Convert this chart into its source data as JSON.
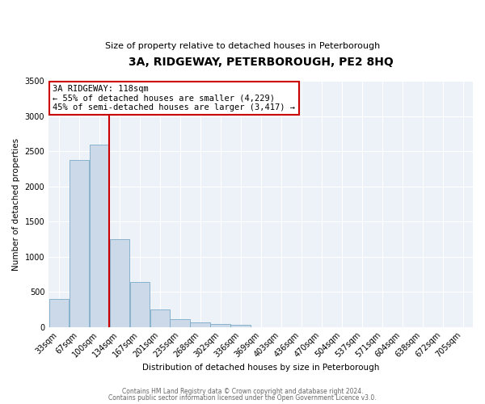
{
  "title": "3A, RIDGEWAY, PETERBOROUGH, PE2 8HQ",
  "subtitle": "Size of property relative to detached houses in Peterborough",
  "xlabel": "Distribution of detached houses by size in Peterborough",
  "ylabel": "Number of detached properties",
  "bar_color": "#ccd9e8",
  "bar_edge_color": "#7aaac8",
  "background_color": "#edf2f9",
  "grid_color": "#ffffff",
  "categories": [
    "33sqm",
    "67sqm",
    "100sqm",
    "134sqm",
    "167sqm",
    "201sqm",
    "235sqm",
    "268sqm",
    "302sqm",
    "336sqm",
    "369sqm",
    "403sqm",
    "436sqm",
    "470sqm",
    "504sqm",
    "537sqm",
    "571sqm",
    "604sqm",
    "638sqm",
    "672sqm",
    "705sqm"
  ],
  "values": [
    400,
    2380,
    2600,
    1250,
    640,
    255,
    110,
    60,
    40,
    30,
    0,
    0,
    0,
    0,
    0,
    0,
    0,
    0,
    0,
    0,
    0
  ],
  "ylim": [
    0,
    3500
  ],
  "vline_color": "#cc0000",
  "annotation_title": "3A RIDGEWAY: 118sqm",
  "annotation_line1": "← 55% of detached houses are smaller (4,229)",
  "annotation_line2": "45% of semi-detached houses are larger (3,417) →",
  "annotation_box_edge": "#cc0000",
  "footer_line1": "Contains HM Land Registry data © Crown copyright and database right 2024.",
  "footer_line2": "Contains public sector information licensed under the Open Government Licence v3.0."
}
